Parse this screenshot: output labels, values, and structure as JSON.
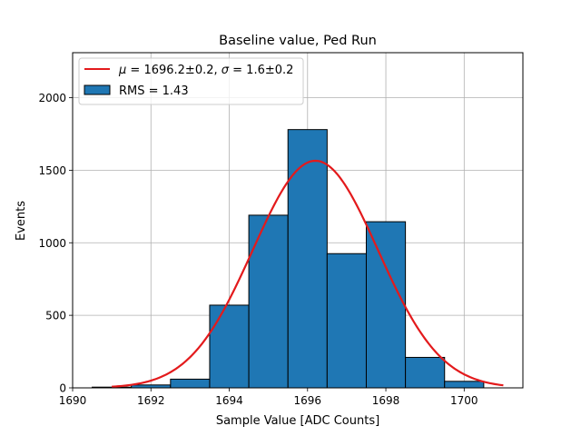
{
  "chart_data": {
    "type": "bar",
    "title": "Baseline value, Ped Run",
    "xlabel": "Sample Value [ADC Counts]",
    "ylabel": "Events",
    "xlim": [
      1690,
      1701.5
    ],
    "ylim": [
      0,
      2310
    ],
    "xticks": [
      1690,
      1692,
      1694,
      1696,
      1698,
      1700
    ],
    "yticks": [
      0,
      500,
      1000,
      1500,
      2000
    ],
    "grid": true,
    "legend_position": "top-left",
    "histogram": {
      "bin_edges": [
        1690.5,
        1691.5,
        1692.5,
        1693.5,
        1694.5,
        1695.5,
        1696.5,
        1697.5,
        1698.5,
        1699.5,
        1700.5
      ],
      "values": [
        5,
        20,
        60,
        570,
        1190,
        1780,
        925,
        1145,
        210,
        45
      ],
      "color": "#1f77b4",
      "edgecolor": "#000000",
      "label": "RMS = 1.43"
    },
    "fit": {
      "type": "gaussian",
      "mu": 1696.2,
      "sigma": 1.6,
      "amplitude": 1565,
      "x_range": [
        1691,
        1701
      ],
      "color": "#e31a1c",
      "label_prefix": "μ",
      "label_prefix2": " = 1696.2±0.2, ",
      "label_prefix3": "σ",
      "label_prefix4": " = 1.6±0.2"
    }
  }
}
